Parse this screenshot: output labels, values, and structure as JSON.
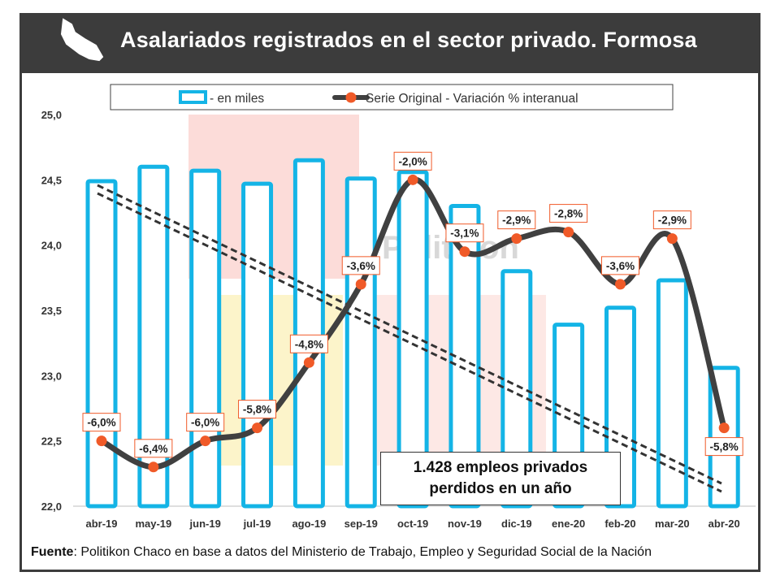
{
  "header": {
    "title": "Asalariados registrados en el sector privado. Formosa"
  },
  "watermark": "Politikon",
  "annotation": {
    "line1": "1.428 empleos privados",
    "line2": "perdidos en un año"
  },
  "source": {
    "label": "Fuente",
    "text": ": Politikon Chaco en base a datos del Ministerio de Trabajo, Empleo y Seguridad Social de la Nación"
  },
  "colors": {
    "bar": "#14b4e6",
    "line": "#404040",
    "marker": "#f05a28",
    "trend": "#333333",
    "header_bg": "#3c3c3c"
  },
  "chart_data": {
    "type": "bar",
    "categories": [
      "abr-19",
      "may-19",
      "jun-19",
      "jul-19",
      "ago-19",
      "sep-19",
      "oct-19",
      "nov-19",
      "dic-19",
      "ene-20",
      "feb-20",
      "mar-20",
      "abr-20"
    ],
    "series": [
      {
        "name": "- en miles",
        "type": "bar",
        "values": [
          24.49,
          24.6,
          24.57,
          24.47,
          24.65,
          24.51,
          24.56,
          24.3,
          23.8,
          23.39,
          23.52,
          23.73,
          23.06
        ]
      },
      {
        "name": "Serie Original - Variación % interanual",
        "type": "line",
        "values": [
          -6.0,
          -6.4,
          -6.0,
          -5.8,
          -4.8,
          -3.6,
          -2.0,
          -3.1,
          -2.9,
          -2.8,
          -3.6,
          -2.9,
          -5.8
        ],
        "labels": [
          "-6,0%",
          "-6,4%",
          "-6,0%",
          "-5,8%",
          "-4,8%",
          "-3,6%",
          "-2,0%",
          "-3,1%",
          "-2,9%",
          "-2,8%",
          "-3,6%",
          "-2,9%",
          "-5,8%"
        ]
      }
    ],
    "y_ticks": [
      "25,0",
      "24,5",
      "24,0",
      "23,5",
      "23,0",
      "22,5",
      "22,0"
    ],
    "ylim": [
      22.0,
      25.0
    ],
    "legend": "top",
    "grid": false
  }
}
